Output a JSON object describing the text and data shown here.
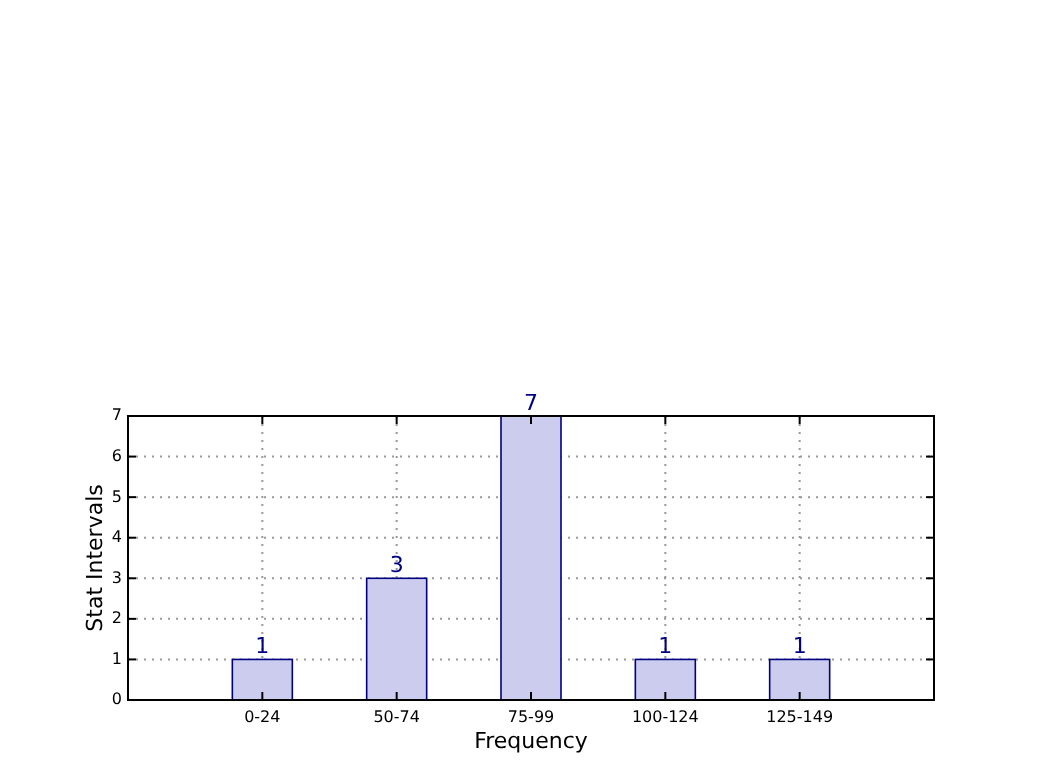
{
  "chart_data": {
    "type": "bar",
    "xlabel": "Frequency",
    "ylabel": "Stat Intervals",
    "categories": [
      "0-24",
      "50-74",
      "75-99",
      "100-124",
      "125-149"
    ],
    "values": [
      1,
      3,
      7,
      1,
      1
    ],
    "color": "#ccccee",
    "ylim": [
      0,
      7
    ],
    "yticks": [
      0,
      1,
      2,
      3,
      4,
      5,
      6,
      7
    ],
    "grid": true,
    "data_labels": true
  }
}
